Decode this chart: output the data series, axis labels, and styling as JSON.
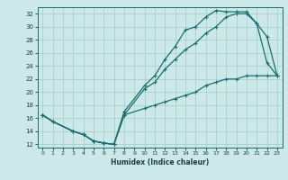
{
  "xlabel": "Humidex (Indice chaleur)",
  "bg_color": "#cce8e8",
  "grid_color": "#a8d0d0",
  "line_color": "#1a6e6e",
  "xlim": [
    -0.5,
    23.5
  ],
  "ylim": [
    11.5,
    33.0
  ],
  "xticks": [
    0,
    1,
    2,
    3,
    4,
    5,
    6,
    7,
    8,
    9,
    10,
    11,
    12,
    13,
    14,
    15,
    16,
    17,
    18,
    19,
    20,
    21,
    22,
    23
  ],
  "yticks": [
    12,
    14,
    16,
    18,
    20,
    22,
    24,
    26,
    28,
    30,
    32
  ],
  "curve1_x": [
    0,
    1,
    3,
    4,
    5,
    6,
    7,
    8,
    10,
    11,
    12,
    13,
    14,
    15,
    16,
    17,
    18,
    19,
    20,
    21,
    22,
    23
  ],
  "curve1_y": [
    16.5,
    15.5,
    14.0,
    13.5,
    12.5,
    12.2,
    12.0,
    17.0,
    21.0,
    22.5,
    25.0,
    27.0,
    29.5,
    30.0,
    31.5,
    32.5,
    32.3,
    32.3,
    32.3,
    30.5,
    24.5,
    22.5
  ],
  "curve2_x": [
    0,
    1,
    3,
    4,
    5,
    6,
    7,
    8,
    10,
    11,
    12,
    13,
    14,
    15,
    16,
    17,
    18,
    19,
    20,
    21,
    22,
    23
  ],
  "curve2_y": [
    16.5,
    15.5,
    14.0,
    13.5,
    12.5,
    12.2,
    12.0,
    16.5,
    20.5,
    21.5,
    23.5,
    25.0,
    26.5,
    27.5,
    29.0,
    30.0,
    31.5,
    32.0,
    32.0,
    30.5,
    28.5,
    22.5
  ],
  "curve3_x": [
    0,
    1,
    3,
    4,
    5,
    6,
    7,
    8,
    10,
    11,
    12,
    13,
    14,
    15,
    16,
    17,
    18,
    19,
    20,
    21,
    22,
    23
  ],
  "curve3_y": [
    16.5,
    15.5,
    14.0,
    13.5,
    12.5,
    12.2,
    12.0,
    16.5,
    17.5,
    18.0,
    18.5,
    19.0,
    19.5,
    20.0,
    21.0,
    21.5,
    22.0,
    22.0,
    22.5,
    22.5,
    22.5,
    22.5
  ]
}
